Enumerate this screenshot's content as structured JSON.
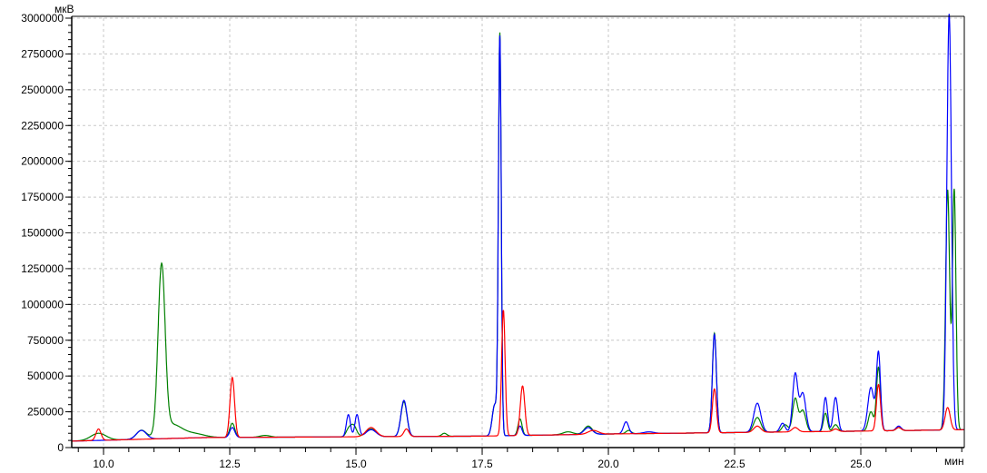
{
  "chart_data": {
    "type": "line",
    "xlabel": "мин",
    "ylabel": "мкВ",
    "xlim": [
      9.37,
      27.05
    ],
    "ylim": [
      0,
      3000000
    ],
    "grid": true,
    "legend": "none",
    "x_ticks": [
      10.0,
      12.5,
      15.0,
      17.5,
      20.0,
      22.5,
      25.0
    ],
    "x_tick_labels": [
      "10.0",
      "12.5",
      "15.0",
      "17.5",
      "20.0",
      "22.5",
      "25.0"
    ],
    "y_ticks": [
      0,
      250000,
      500000,
      750000,
      1000000,
      1250000,
      1500000,
      1750000,
      2000000,
      2250000,
      2500000,
      2750000,
      3000000
    ],
    "y_tick_labels": [
      "0",
      "250000",
      "500000",
      "750000",
      "1000000",
      "1250000",
      "1500000",
      "1750000",
      "2000000",
      "2250000",
      "2500000",
      "2750000",
      "3000000"
    ],
    "baseline": [
      [
        9.37,
        45000
      ],
      [
        12.0,
        70000
      ],
      [
        17.5,
        80000
      ],
      [
        20.0,
        95000
      ],
      [
        25.0,
        115000
      ],
      [
        27.05,
        125000
      ]
    ],
    "series": [
      {
        "color": "#008000",
        "peaks": [
          [
            9.9,
            100000,
            0.15
          ],
          [
            10.75,
            120000,
            0.1
          ],
          [
            11.15,
            1230000,
            0.07
          ],
          [
            11.35,
            160000,
            0.2
          ],
          [
            11.8,
            95000,
            0.2
          ],
          [
            12.55,
            170000,
            0.05
          ],
          [
            13.2,
            85000,
            0.1
          ],
          [
            14.95,
            155000,
            0.06
          ],
          [
            14.85,
            120000,
            0.05
          ],
          [
            15.3,
            130000,
            0.1
          ],
          [
            15.95,
            320000,
            0.06
          ],
          [
            16.75,
            100000,
            0.05
          ],
          [
            17.85,
            2870000,
            0.028
          ],
          [
            17.75,
            300000,
            0.05
          ],
          [
            18.25,
            200000,
            0.04
          ],
          [
            19.2,
            110000,
            0.1
          ],
          [
            19.6,
            150000,
            0.08
          ],
          [
            20.4,
            120000,
            0.05
          ],
          [
            22.1,
            800000,
            0.04
          ],
          [
            22.95,
            210000,
            0.07
          ],
          [
            23.5,
            160000,
            0.06
          ],
          [
            23.7,
            340000,
            0.05
          ],
          [
            23.85,
            260000,
            0.06
          ],
          [
            24.3,
            240000,
            0.04
          ],
          [
            24.5,
            160000,
            0.05
          ],
          [
            25.2,
            250000,
            0.05
          ],
          [
            25.35,
            560000,
            0.04
          ],
          [
            25.75,
            140000,
            0.05
          ],
          [
            26.72,
            1800000,
            0.04
          ],
          [
            26.85,
            1800000,
            0.035
          ]
        ]
      },
      {
        "color": "#0000ff",
        "peaks": [
          [
            10.75,
            120000,
            0.1
          ],
          [
            12.55,
            140000,
            0.05
          ],
          [
            14.85,
            230000,
            0.04
          ],
          [
            15.02,
            230000,
            0.04
          ],
          [
            15.3,
            125000,
            0.1
          ],
          [
            15.95,
            330000,
            0.06
          ],
          [
            17.85,
            2850000,
            0.028
          ],
          [
            17.75,
            300000,
            0.05
          ],
          [
            18.25,
            150000,
            0.04
          ],
          [
            19.6,
            140000,
            0.08
          ],
          [
            20.35,
            180000,
            0.05
          ],
          [
            20.8,
            110000,
            0.1
          ],
          [
            22.1,
            790000,
            0.04
          ],
          [
            22.95,
            310000,
            0.07
          ],
          [
            23.45,
            170000,
            0.05
          ],
          [
            23.7,
            510000,
            0.05
          ],
          [
            23.85,
            380000,
            0.06
          ],
          [
            24.3,
            350000,
            0.04
          ],
          [
            24.5,
            350000,
            0.045
          ],
          [
            25.2,
            420000,
            0.06
          ],
          [
            25.35,
            660000,
            0.04
          ],
          [
            25.75,
            150000,
            0.05
          ],
          [
            26.75,
            3030000,
            0.045
          ]
        ]
      },
      {
        "color": "#ff0000",
        "peaks": [
          [
            9.9,
            130000,
            0.05
          ],
          [
            12.55,
            490000,
            0.045
          ],
          [
            15.3,
            140000,
            0.1
          ],
          [
            16.0,
            130000,
            0.05
          ],
          [
            17.92,
            960000,
            0.035
          ],
          [
            18.3,
            430000,
            0.045
          ],
          [
            19.7,
            120000,
            0.1
          ],
          [
            22.1,
            410000,
            0.04
          ],
          [
            22.95,
            150000,
            0.07
          ],
          [
            23.7,
            140000,
            0.06
          ],
          [
            24.5,
            130000,
            0.05
          ],
          [
            25.35,
            440000,
            0.04
          ],
          [
            25.75,
            140000,
            0.05
          ],
          [
            26.72,
            280000,
            0.05
          ]
        ]
      }
    ]
  }
}
